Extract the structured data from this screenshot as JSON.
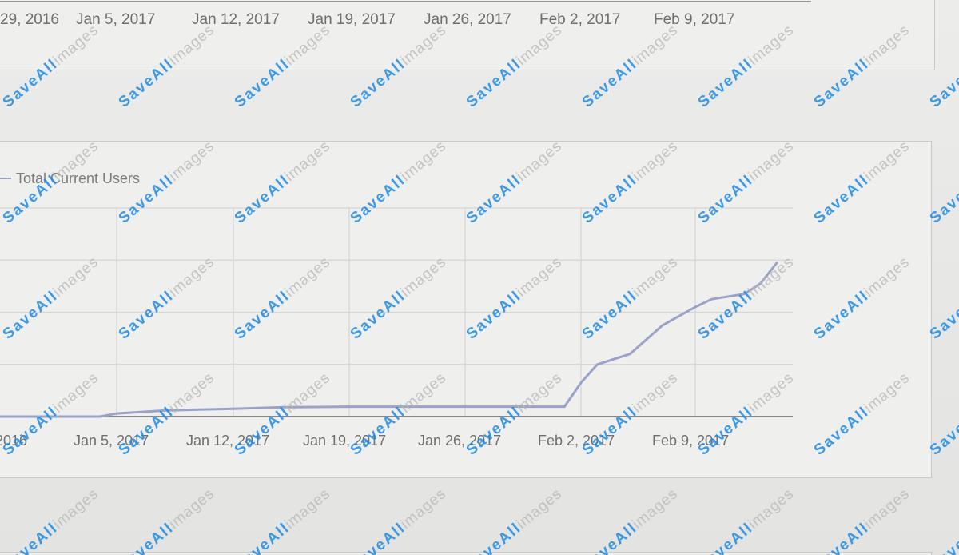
{
  "top_chart": {
    "x_tick_labels": [
      "29, 2016",
      "Jan 5, 2017",
      "Jan 12, 2017",
      "Jan 19, 2017",
      "Jan 26, 2017",
      "Feb 2, 2017",
      "Feb 9, 2017"
    ]
  },
  "watermark": {
    "brand": "SaveAll",
    "suffix": "images"
  },
  "colors": {
    "line": "#9aa3c7",
    "grid": "#d4d4d3",
    "axis": "#8a8a8a",
    "tick_text": "#6f6f6f",
    "watermark_blue": "#1e8be6",
    "watermark_gray": "#b9b9b9"
  },
  "chart_data": {
    "type": "line",
    "title": "",
    "xlabel": "",
    "ylabel": "",
    "x_tick_labels": [
      "2016",
      "Jan 5, 2017",
      "Jan 12, 2017",
      "Jan 19, 2017",
      "Jan 26, 2017",
      "Feb 2, 2017",
      "Feb 9, 2017"
    ],
    "x_ticks": [
      "2016-12-29",
      "2017-01-05",
      "2017-01-12",
      "2017-01-19",
      "2017-01-26",
      "2017-02-02",
      "2017-02-09"
    ],
    "xlim": [
      "2016-12-29",
      "2017-02-14"
    ],
    "y_gridlines": 4,
    "grid": true,
    "legend": "top-left",
    "series": [
      {
        "name": "Total Current Users",
        "x": [
          "2016-12-29",
          "2017-01-04",
          "2017-01-05",
          "2017-01-08",
          "2017-01-12",
          "2017-01-15",
          "2017-01-19",
          "2017-01-26",
          "2017-02-01",
          "2017-02-02",
          "2017-02-03",
          "2017-02-05",
          "2017-02-07",
          "2017-02-09",
          "2017-02-10",
          "2017-02-12",
          "2017-02-13",
          "2017-02-14"
        ],
        "y": [
          0,
          0,
          0.06,
          0.12,
          0.15,
          0.18,
          0.19,
          0.19,
          0.19,
          0.65,
          1.0,
          1.2,
          1.75,
          2.1,
          2.25,
          2.35,
          2.55,
          2.95
        ]
      }
    ]
  }
}
